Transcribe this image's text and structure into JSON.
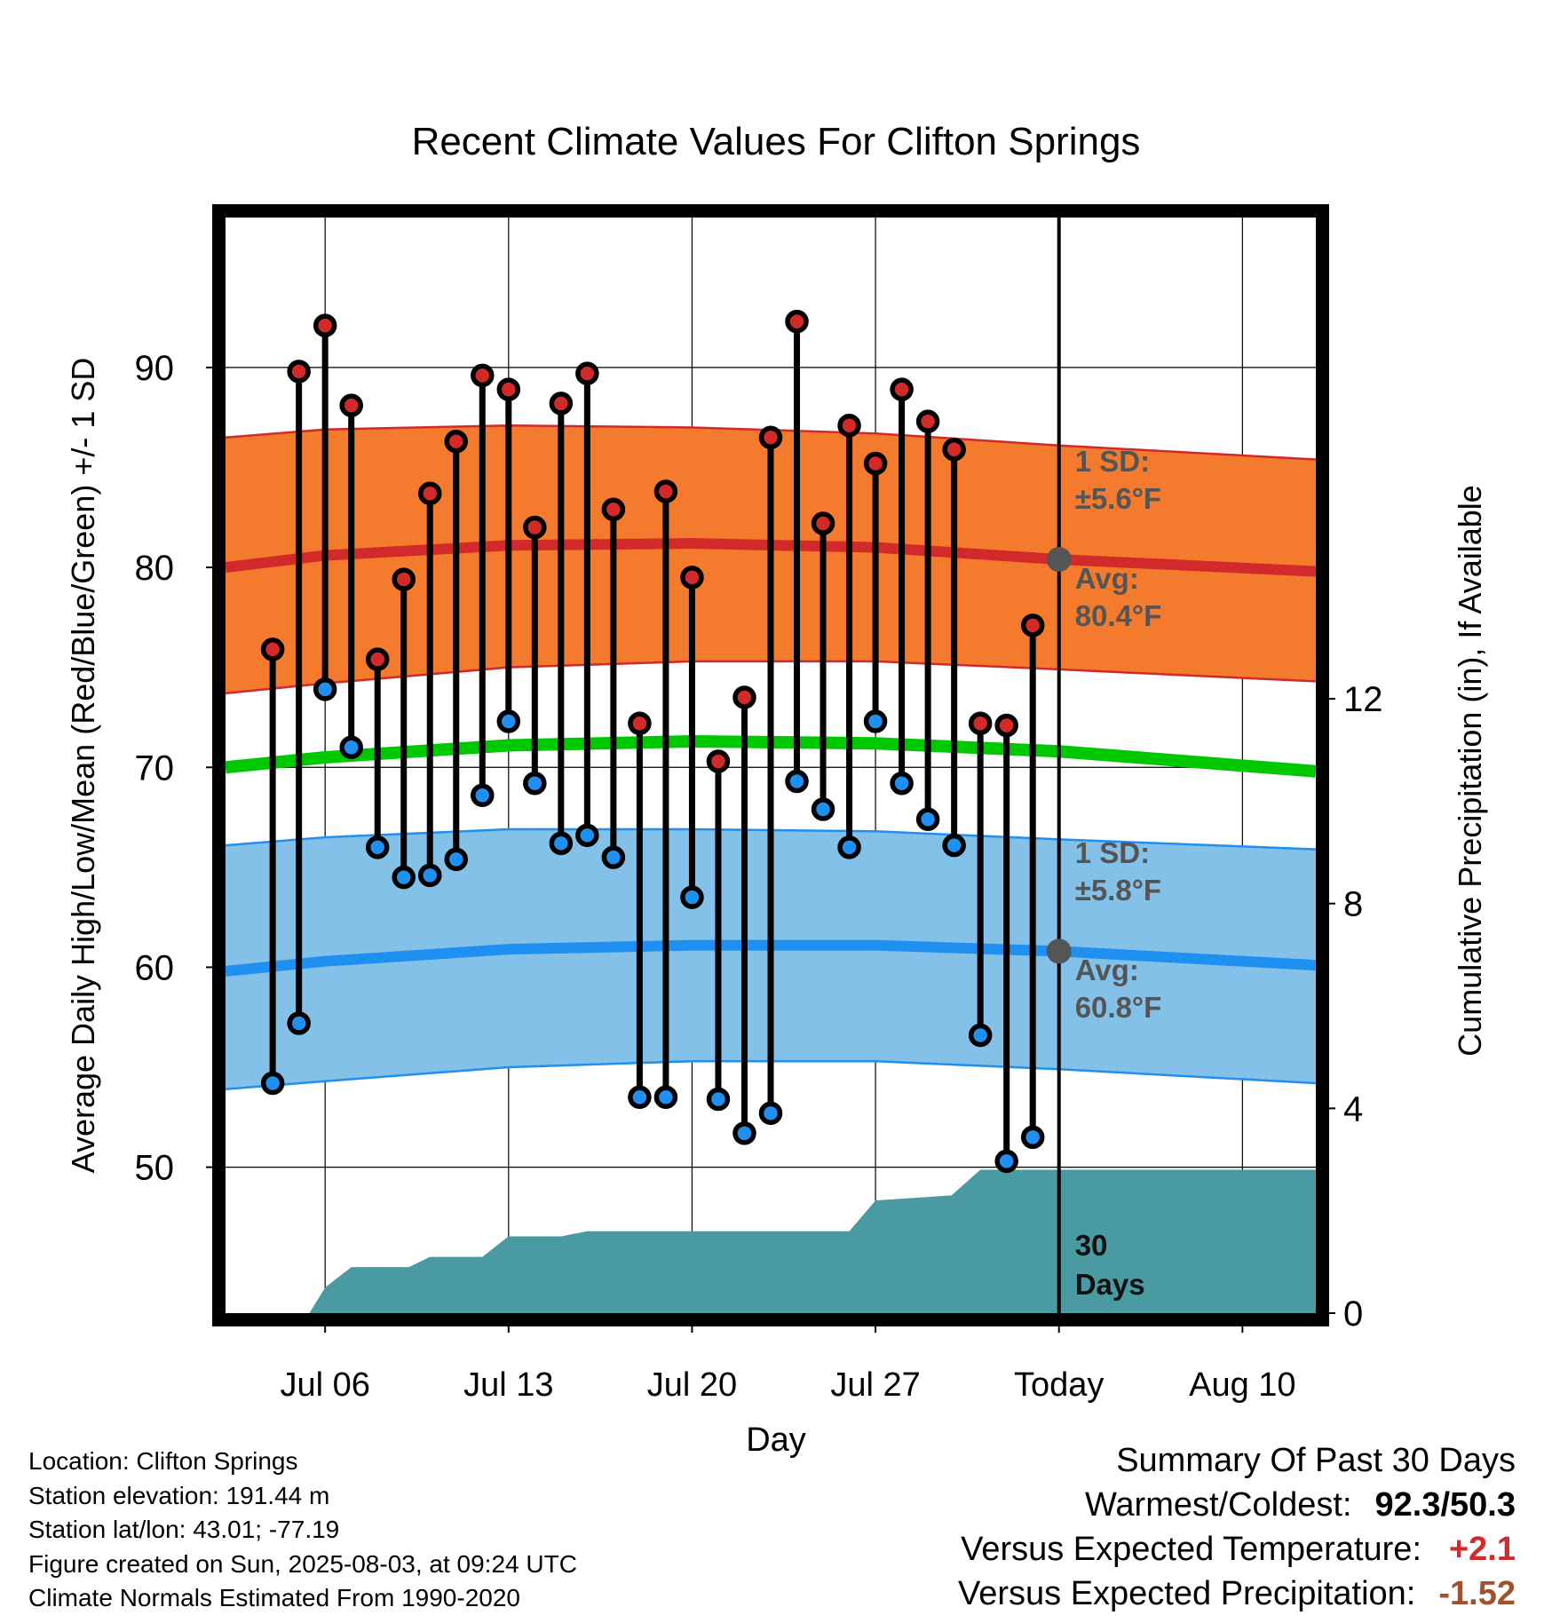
{
  "chart_data": {
    "type": "line",
    "title": "Recent Climate Values For Clifton Springs",
    "xlabel": "Day",
    "ylabel": "Average Daily High/Low/Mean (Red/Blue/Green) +/- 1 SD",
    "y2label": "Cumulative Precipitation (in), If Available",
    "ylim": [
      42.7,
      97.5
    ],
    "y2lim": [
      0,
      21.4
    ],
    "yticks": [
      50,
      60,
      70,
      80,
      90
    ],
    "y2ticks": [
      0,
      4,
      8,
      12
    ],
    "xlim": [
      2.2,
      43.8
    ],
    "xticks": [
      {
        "day": 6,
        "label": "Jul 06"
      },
      {
        "day": 13,
        "label": "Jul 13"
      },
      {
        "day": 20,
        "label": "Jul 20"
      },
      {
        "day": 27,
        "label": "Jul 27"
      },
      {
        "day": 34,
        "label": "Today"
      },
      {
        "day": 41,
        "label": "Aug 10"
      }
    ],
    "grid": true,
    "today_day": 34,
    "highs": [
      75.9,
      89.8,
      92.1,
      88.1,
      75.4,
      79.4,
      83.7,
      86.3,
      89.6,
      88.9,
      82.0,
      88.2,
      89.7,
      82.9,
      72.2,
      83.8,
      79.5,
      70.3,
      73.5,
      86.5,
      92.3,
      82.2,
      87.1,
      85.2,
      88.9,
      87.3,
      85.9,
      72.2,
      72.1,
      77.1
    ],
    "lows": [
      54.2,
      57.2,
      73.9,
      71.0,
      66.0,
      64.5,
      64.6,
      65.4,
      68.6,
      72.3,
      69.2,
      66.2,
      66.6,
      65.5,
      53.5,
      53.5,
      63.5,
      53.4,
      51.7,
      52.7,
      69.3,
      67.9,
      66.0,
      72.3,
      69.2,
      67.4,
      66.1,
      56.6,
      50.3,
      51.5
    ],
    "normals": {
      "days": [
        2.2,
        6,
        13,
        20,
        27,
        34,
        43.8
      ],
      "high_avg": [
        80.0,
        80.6,
        81.1,
        81.2,
        81.0,
        80.4,
        79.8
      ],
      "high_sd_band": [
        [
          73.7,
          86.5
        ],
        [
          74.2,
          86.9
        ],
        [
          75.0,
          87.1
        ],
        [
          75.3,
          87.0
        ],
        [
          75.3,
          86.7
        ],
        [
          74.9,
          86.1
        ],
        [
          74.3,
          85.4
        ]
      ],
      "low_avg": [
        59.8,
        60.3,
        60.9,
        61.1,
        61.1,
        60.8,
        60.1
      ],
      "low_sd_band": [
        [
          53.9,
          66.1
        ],
        [
          54.3,
          66.5
        ],
        [
          55.0,
          66.9
        ],
        [
          55.3,
          66.9
        ],
        [
          55.3,
          66.8
        ],
        [
          54.9,
          66.4
        ],
        [
          54.2,
          65.9
        ]
      ],
      "mean_avg": [
        70.0,
        70.5,
        71.1,
        71.3,
        71.2,
        70.8,
        69.8
      ]
    },
    "precip_cumulative": {
      "days": [
        2.2,
        5.4,
        6.0,
        7.0,
        9.2,
        10.0,
        12.0,
        13.0,
        15.0,
        16.0,
        26.0,
        27.0,
        29.9,
        31.0,
        34.0,
        43.8
      ],
      "values": [
        0,
        0,
        0.5,
        0.9,
        0.9,
        1.1,
        1.1,
        1.5,
        1.5,
        1.6,
        1.6,
        2.2,
        2.3,
        2.8,
        2.8,
        2.8
      ]
    },
    "annotations": {
      "high_sd_line1": "1 SD:",
      "high_sd_line2": "±5.6°F",
      "high_avg_line1": "Avg:",
      "high_avg_line2": "80.4°F",
      "low_sd_line1": "1 SD:",
      "low_sd_line2": "±5.8°F",
      "low_avg_line1": "Avg:",
      "low_avg_line2": "60.8°F",
      "precip_line1": "30",
      "precip_line2": "Days"
    },
    "colors": {
      "high_band": "#f47a2e",
      "high_line": "#d22a2a",
      "low_band": "#84c1e8",
      "low_line": "#1f8ff0",
      "mean_line": "#00c800",
      "precip": "#4a9aa3",
      "high_marker": "#d22a2a",
      "low_marker": "#1f8ff0",
      "annotation_text": "#555555"
    }
  },
  "footer": {
    "location": "Location: Clifton Springs",
    "elevation": "Station elevation: 191.44 m",
    "latlon": "Station lat/lon: 43.01; -77.19",
    "created": "Figure created on Sun, 2025-08-03, at 09:24 UTC",
    "normals": "Climate Normals Estimated From 1990-2020"
  },
  "summary": {
    "title": "Summary Of Past 30 Days",
    "warm_cold_label": "Warmest/Coldest:",
    "warm_cold_value": "92.3/50.3",
    "temp_label": "Versus Expected Temperature:",
    "temp_value": "+2.1",
    "temp_color": "#d22a2a",
    "precip_label": "Versus Expected Precipitation:",
    "precip_value": "-1.52",
    "precip_color": "#a0522d"
  }
}
